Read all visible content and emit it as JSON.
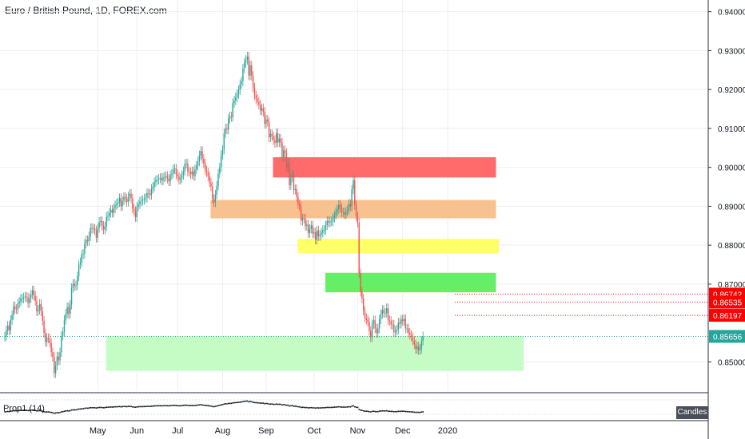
{
  "header": {
    "title": "Euro / British Pound, 1D, FOREX.com"
  },
  "indicator_label": "Prop1 (14)",
  "candles_button": "Candles",
  "colors": {
    "up": "#26a69a",
    "down": "#ef5350",
    "grid": "#eeeeee",
    "axis": "#131722",
    "last": "#26a69a",
    "alert": "#ff0000"
  },
  "chart_data": {
    "type": "candlestick",
    "title": "Euro / British Pound, 1D, FOREX.com",
    "ylim": [
      0.8425,
      0.943
    ],
    "y_ticks": [
      "0.94000",
      "0.93000",
      "0.92000",
      "0.91000",
      "0.90000",
      "0.89000",
      "0.88000",
      "0.87000",
      "0.85000"
    ],
    "x_ticks": [
      "May",
      "Jun",
      "Jul",
      "Aug",
      "Sep",
      "Oct",
      "Nov",
      "Dec",
      "2020"
    ],
    "x_ticks_day": [
      64,
      91,
      119,
      150,
      180,
      213,
      243,
      274,
      305
    ],
    "start_day": 0,
    "candle_step_days": 1,
    "closes": [
      0.8565,
      0.8581,
      0.8593,
      0.8581,
      0.8608,
      0.862,
      0.8643,
      0.8636,
      0.8635,
      0.865,
      0.8655,
      0.8663,
      0.8663,
      0.8666,
      0.8668,
      0.8666,
      0.8651,
      0.8664,
      0.8673,
      0.8684,
      0.867,
      0.8657,
      0.863,
      0.8634,
      0.8649,
      0.863,
      0.8606,
      0.8574,
      0.8551,
      0.8562,
      0.856,
      0.8549,
      0.8525,
      0.8513,
      0.8471,
      0.849,
      0.8514,
      0.8504,
      0.8525,
      0.8567,
      0.8577,
      0.8608,
      0.8624,
      0.8641,
      0.8623,
      0.8647,
      0.869,
      0.8701,
      0.8695,
      0.8697,
      0.872,
      0.875,
      0.8756,
      0.8776,
      0.8778,
      0.8804,
      0.8813,
      0.881,
      0.8823,
      0.8844,
      0.8842,
      0.8843,
      0.8838,
      0.8819,
      0.8844,
      0.886,
      0.8862,
      0.885,
      0.884,
      0.8848,
      0.8873,
      0.8875,
      0.8883,
      0.8891,
      0.8883,
      0.8895,
      0.8903,
      0.8907,
      0.891,
      0.8921,
      0.89,
      0.8914,
      0.8924,
      0.892,
      0.8911,
      0.8925,
      0.8932,
      0.892,
      0.8894,
      0.8888,
      0.8872,
      0.8899,
      0.8905,
      0.8912,
      0.8914,
      0.8916,
      0.892,
      0.8922,
      0.8934,
      0.8932,
      0.8929,
      0.8945,
      0.895,
      0.8962,
      0.8967,
      0.8968,
      0.8971,
      0.8973,
      0.8966,
      0.8974,
      0.8976,
      0.8978,
      0.8971,
      0.8964,
      0.898,
      0.8984,
      0.8995,
      0.8997,
      0.8982,
      0.8976,
      0.8968,
      0.8972,
      0.898,
      0.899,
      0.9009,
      0.901,
      0.8989,
      0.8988,
      0.8982,
      0.899,
      0.8978,
      0.8995,
      0.9004,
      0.9015,
      0.9031,
      0.9042,
      0.9022,
      0.901,
      0.8992,
      0.8987,
      0.8977,
      0.8961,
      0.8951,
      0.8919,
      0.891,
      0.893,
      0.8953,
      0.8984,
      0.9,
      0.9032,
      0.9045,
      0.9087,
      0.91,
      0.9097,
      0.9125,
      0.9131,
      0.9129,
      0.9165,
      0.9172,
      0.918,
      0.9188,
      0.9198,
      0.9214,
      0.9221,
      0.9254,
      0.9269,
      0.9276,
      0.9285,
      0.9236,
      0.9262,
      0.9235,
      0.9205,
      0.9185,
      0.9176,
      0.9169,
      0.9161,
      0.9146,
      0.9152,
      0.9143,
      0.9112,
      0.9123,
      0.9117,
      0.9077,
      0.9086,
      0.908,
      0.907,
      0.9063,
      0.9088,
      0.9064,
      0.9074,
      0.9063,
      0.9026,
      0.9044,
      0.9037,
      0.9,
      0.9011,
      0.8954,
      0.8974,
      0.898,
      0.8942,
      0.8944,
      0.8924,
      0.8905,
      0.89,
      0.8863,
      0.8869,
      0.8868,
      0.8849,
      0.8853,
      0.8831,
      0.8842,
      0.8851,
      0.883,
      0.8833,
      0.8814,
      0.8838,
      0.8823,
      0.8827,
      0.8832,
      0.8839,
      0.8839,
      0.8851,
      0.8862,
      0.8858,
      0.8861,
      0.8861,
      0.887,
      0.8877,
      0.8885,
      0.8892,
      0.8904,
      0.8896,
      0.8884,
      0.8884,
      0.8879,
      0.8886,
      0.8891,
      0.8906,
      0.8899,
      0.8943,
      0.8967,
      0.8903,
      0.8874,
      0.8858,
      0.8728,
      0.868,
      0.8663,
      0.8631,
      0.8613,
      0.8608,
      0.8603,
      0.8579,
      0.8563,
      0.8597,
      0.8607,
      0.8586,
      0.8574,
      0.8586,
      0.8609,
      0.8623,
      0.8634,
      0.8626,
      0.8626,
      0.8638,
      0.8607,
      0.8605,
      0.8596,
      0.8596,
      0.8576,
      0.858,
      0.8583,
      0.8601,
      0.8598,
      0.8609,
      0.8605,
      0.861,
      0.8586,
      0.8586,
      0.8575,
      0.8569,
      0.8564,
      0.8555,
      0.8545,
      0.8533,
      0.854,
      0.853,
      0.8534,
      0.8554,
      0.8566
    ],
    "levels": [
      {
        "label": "0.86742",
        "price": 0.86742,
        "color": "#ff0000",
        "type": "dotted-alert"
      },
      {
        "label": "0.86535",
        "price": 0.86535,
        "color": "#ff0000",
        "type": "dotted-alert"
      },
      {
        "label": "0.86197",
        "price": 0.86197,
        "color": "#ff0000",
        "type": "dotted-alert"
      },
      {
        "label": "0.85656",
        "price": 0.85656,
        "color": "#26a69a",
        "type": "last-price"
      }
    ],
    "zones": [
      {
        "color": "#ff6a6a",
        "top": 0.9025,
        "bottom": 0.8975,
        "from_day": 185,
        "to_day": 338
      },
      {
        "color": "#f7c28f",
        "top": 0.8915,
        "bottom": 0.887,
        "from_day": 142,
        "to_day": 338
      },
      {
        "color": "#ffff66",
        "top": 0.8815,
        "bottom": 0.878,
        "from_day": 202,
        "to_day": 340
      },
      {
        "color": "#66ee66",
        "top": 0.8728,
        "bottom": 0.868,
        "from_day": 221,
        "to_day": 338
      },
      {
        "color": "#c5fcc5",
        "top": 0.8565,
        "bottom": 0.8478,
        "from_day": 70,
        "to_day": 357
      }
    ]
  }
}
